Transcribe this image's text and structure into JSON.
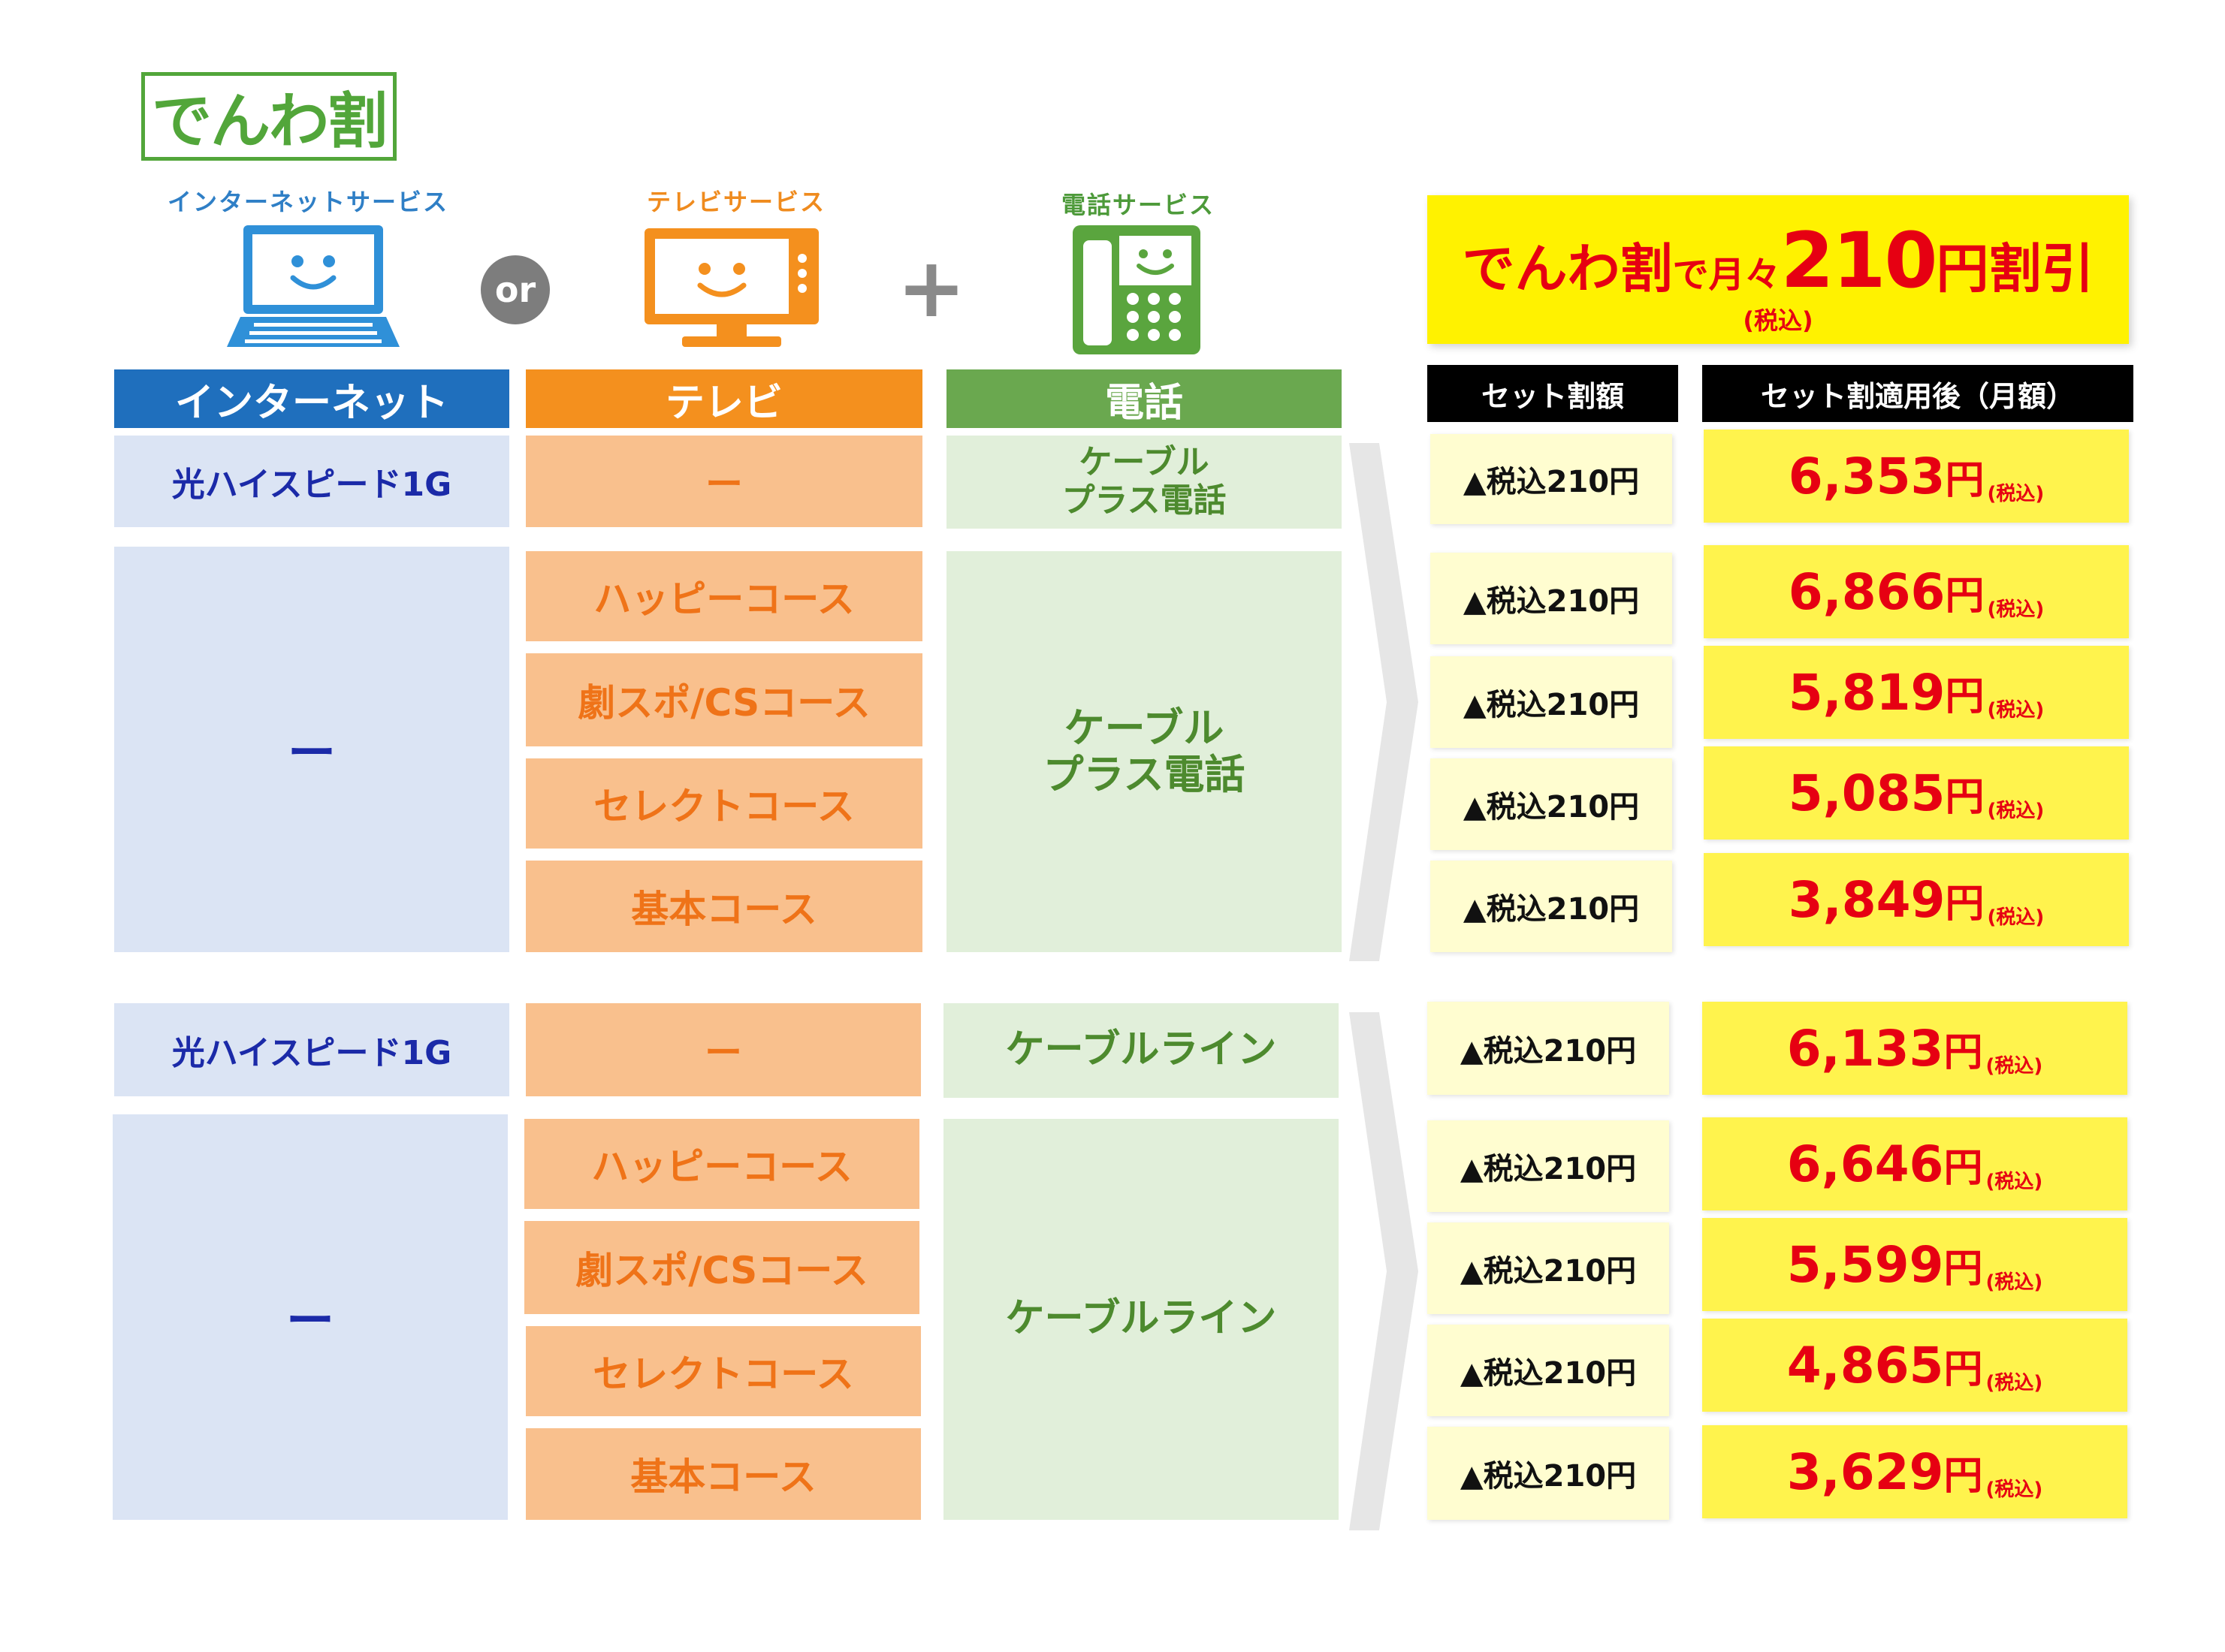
{
  "logo": "でんわ割",
  "services": {
    "internet": "インターネットサービス",
    "tv": "テレビサービス",
    "phone": "電話サービス",
    "or": "or",
    "plus": "+"
  },
  "icons": [
    "laptop-icon",
    "tv-icon",
    "phone-icon"
  ],
  "promo": {
    "part1": "でんわ割",
    "part2": "で月々",
    "amount": "210",
    "part3": "円割引",
    "note": "(税込)"
  },
  "headers": {
    "internet": "インターネット",
    "tv": "テレビ",
    "phone": "電話",
    "set_discount": "セット割額",
    "after_discount": "セット割適用後（月額）"
  },
  "groups": [
    {
      "net_first": "光ハイスピード1G",
      "tv_first": "ー",
      "tel_first": "ケーブル\nプラス電話",
      "net_rest": "ー",
      "tv_rest": [
        "ハッピーコース",
        "劇スポ/CSコース",
        "セレクトコース",
        "基本コース"
      ],
      "tel_rest": "ケーブル\nプラス電話",
      "discounts": [
        "▲税込210円",
        "▲税込210円",
        "▲税込210円",
        "▲税込210円",
        "▲税込210円"
      ],
      "prices": [
        "6,353",
        "6,866",
        "5,819",
        "5,085",
        "3,849"
      ]
    },
    {
      "net_first": "光ハイスピード1G",
      "tv_first": "ー",
      "tel_first": "ケーブルライン",
      "net_rest": "ー",
      "tv_rest": [
        "ハッピーコース",
        "劇スポ/CSコース",
        "セレクトコース",
        "基本コース"
      ],
      "tel_rest": "ケーブルライン",
      "discounts": [
        "▲税込210円",
        "▲税込210円",
        "▲税込210円",
        "▲税込210円",
        "▲税込210円"
      ],
      "prices": [
        "6,133",
        "6,646",
        "5,599",
        "4,865",
        "3,629"
      ]
    }
  ],
  "price_unit": "円",
  "price_tax": "(税込)",
  "colors": {
    "internet": "#1f6fbd",
    "tv": "#f4901e",
    "phone": "#6aa84f",
    "price_red": "#e60012",
    "promo_yellow": "#fff200"
  }
}
